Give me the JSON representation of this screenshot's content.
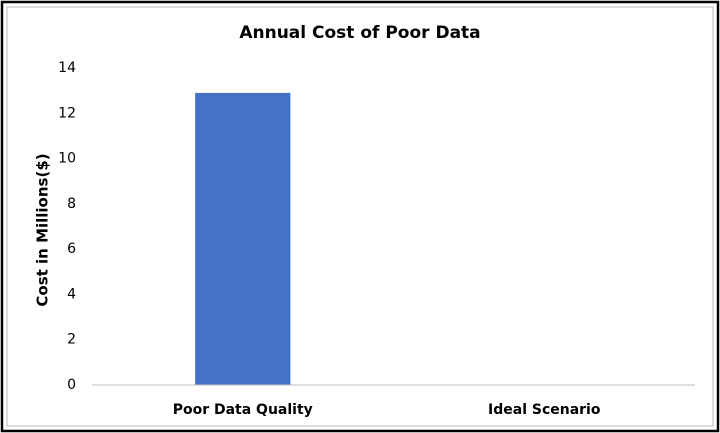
{
  "chart_data": {
    "type": "bar",
    "title": "Annual Cost of Poor Data",
    "ylabel": "Cost in Millions($)",
    "categories": [
      "Poor Data Quality",
      "Ideal Scenario"
    ],
    "values": [
      12.9,
      0
    ],
    "color": "#4472c4",
    "ylim": [
      0,
      14
    ],
    "yticks": [
      0,
      2,
      4,
      6,
      8,
      10,
      12,
      14
    ],
    "grid": false
  }
}
